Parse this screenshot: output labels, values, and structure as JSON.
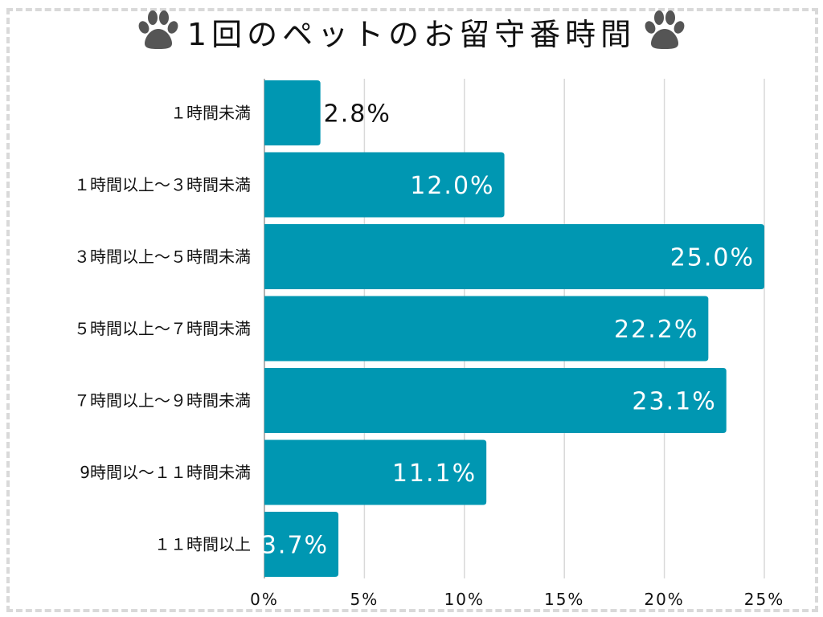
{
  "chart_data": {
    "type": "bar",
    "orientation": "horizontal",
    "title": "1回のペットのお留守番時間",
    "categories": [
      "１時間未満",
      "１時間以上～３時間未満",
      "３時間以上～５時間未満",
      "５時間以上～７時間未満",
      "７時間以上～９時間未満",
      "9時間以～１１時間未満",
      "１１時間以上"
    ],
    "values": [
      2.8,
      12.0,
      25.0,
      22.2,
      23.1,
      11.1,
      3.7
    ],
    "data_labels": [
      "2.8%",
      "12.0%",
      "25.0%",
      "22.2%",
      "23.1%",
      "11.1%",
      "3.7%"
    ],
    "xlim": [
      0,
      25
    ],
    "xticks": [
      0,
      5,
      10,
      15,
      20,
      25
    ],
    "xtick_labels": [
      "0%",
      "5%",
      "10%",
      "15%",
      "20%",
      "25%"
    ],
    "xlabel": "",
    "ylabel": "",
    "grid": true,
    "bar_color": "#0097b2",
    "grid_color": "#d9d9d9",
    "icon": "paw-icon"
  }
}
